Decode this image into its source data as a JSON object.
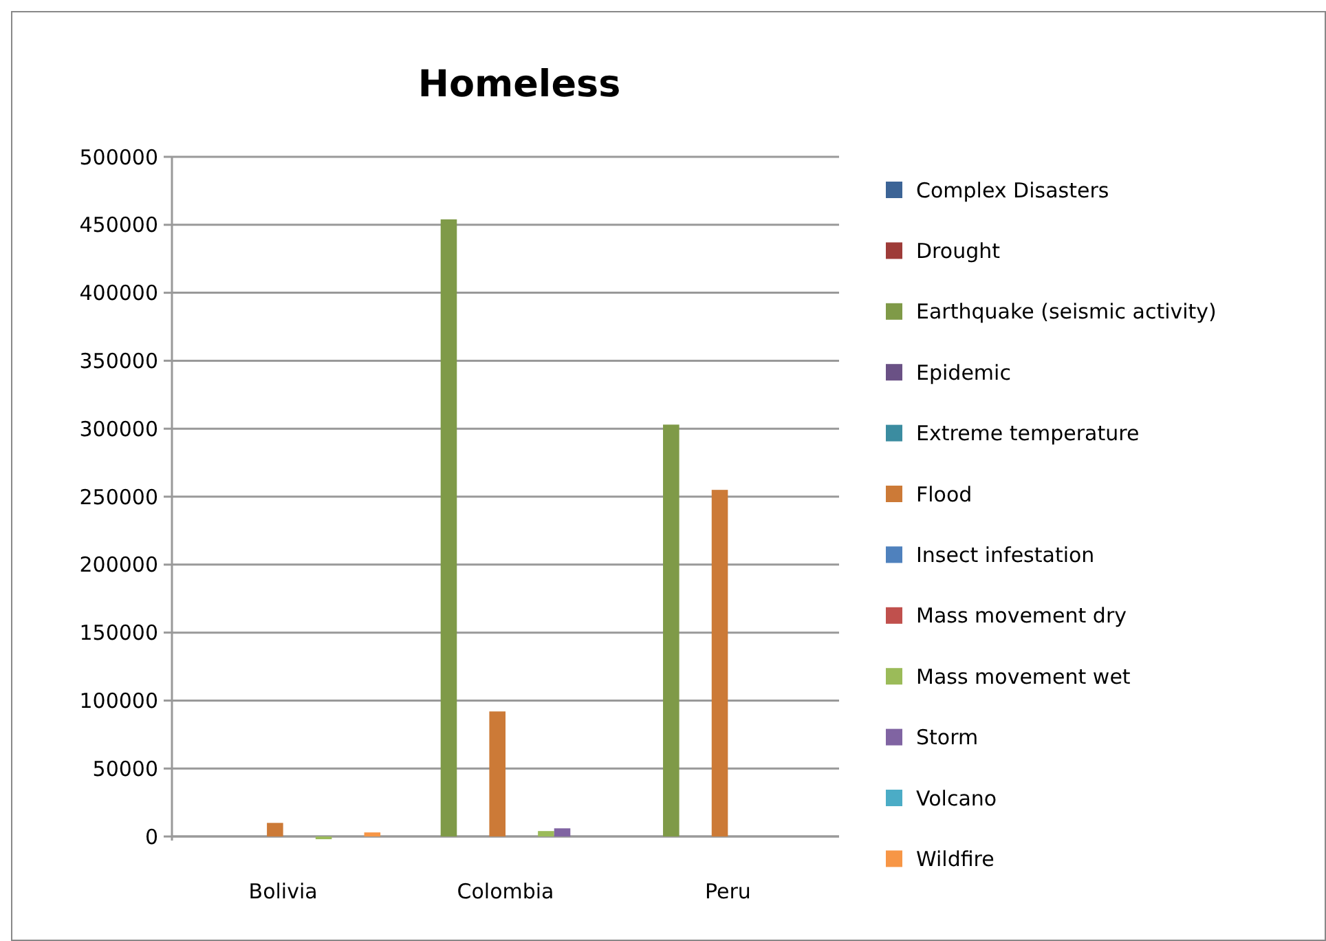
{
  "chart_data": {
    "type": "bar",
    "title": "Homeless",
    "categories": [
      "Bolivia",
      "Colombia",
      "Peru"
    ],
    "series": [
      {
        "name": "Complex Disasters",
        "color": "#3c6496",
        "values": [
          0,
          0,
          0
        ]
      },
      {
        "name": "Drought",
        "color": "#9e3b38",
        "values": [
          0,
          0,
          0
        ]
      },
      {
        "name": "Earthquake (seismic activity)",
        "color": "#7f9a48",
        "values": [
          0,
          454000,
          303000
        ]
      },
      {
        "name": "Epidemic",
        "color": "#6a5185",
        "values": [
          0,
          0,
          0
        ]
      },
      {
        "name": "Extreme temperature",
        "color": "#3b8ca0",
        "values": [
          0,
          0,
          0
        ]
      },
      {
        "name": "Flood",
        "color": "#cc7a37",
        "values": [
          10000,
          92000,
          255000
        ]
      },
      {
        "name": "Insect infestation",
        "color": "#4f81bd",
        "values": [
          0,
          0,
          0
        ]
      },
      {
        "name": "Mass movement dry",
        "color": "#c0504d",
        "values": [
          0,
          0,
          0
        ]
      },
      {
        "name": "Mass movement wet",
        "color": "#9bbb59",
        "values": [
          -2000,
          4000,
          0
        ]
      },
      {
        "name": "Storm",
        "color": "#8064a2",
        "values": [
          0,
          6000,
          0
        ]
      },
      {
        "name": "Volcano",
        "color": "#4bacc6",
        "values": [
          0,
          0,
          0
        ]
      },
      {
        "name": "Wildfire",
        "color": "#f79646",
        "values": [
          3000,
          0,
          0
        ]
      }
    ],
    "ylim": [
      -3000,
      500000
    ],
    "yticks": [
      0,
      50000,
      100000,
      150000,
      200000,
      250000,
      300000,
      350000,
      400000,
      450000,
      500000
    ],
    "grid": "y",
    "legend": "right"
  }
}
